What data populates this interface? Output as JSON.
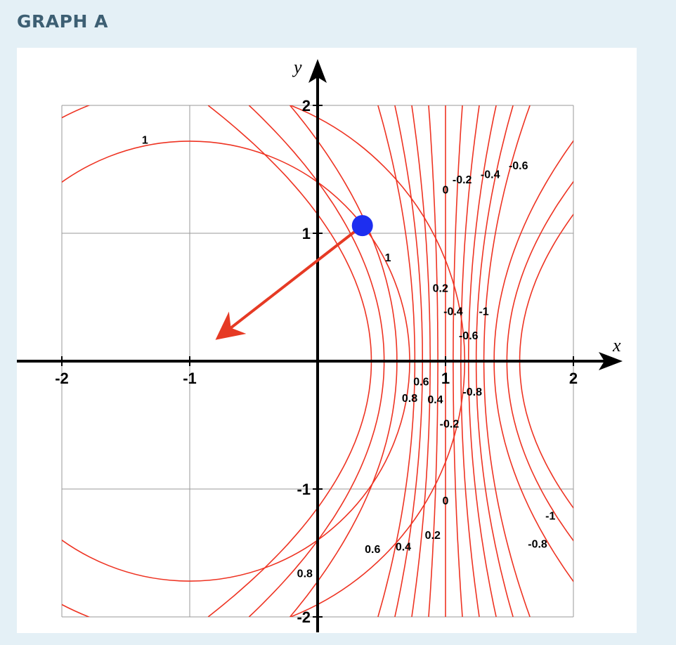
{
  "heading": "GRAPH A",
  "chart_data": {
    "type": "line",
    "title": "",
    "xlabel": "x",
    "ylabel": "y",
    "xlim": [
      -2,
      2
    ],
    "ylim": [
      -2,
      2
    ],
    "grid": true,
    "x_ticks": [
      "-2",
      "-1",
      "1",
      "2"
    ],
    "y_ticks": [
      "2",
      "1",
      "-1",
      "-2"
    ],
    "colors": {
      "contour": "#ee3322",
      "arrow": "#e63a24",
      "point": "#1d2ef0",
      "grid": "#9a9a9a"
    },
    "contour_levels": [
      1,
      0.8,
      0.6,
      0.4,
      0.2,
      0,
      -0.2,
      -0.4,
      -0.6,
      -0.8,
      -1
    ],
    "point": {
      "x": 0.35,
      "y": 1.06
    },
    "arrow": {
      "from": {
        "x": 0.35,
        "y": 1.06
      },
      "to": {
        "x": -0.73,
        "y": 0.22
      }
    },
    "contour_labels": [
      {
        "text": "1",
        "x": -1.35,
        "y": 1.7
      },
      {
        "text": "1",
        "x": 0.55,
        "y": 0.78
      },
      {
        "text": "0",
        "x": 1.0,
        "y": 1.31
      },
      {
        "text": "-0.2",
        "x": 1.13,
        "y": 1.39
      },
      {
        "text": "-0.4",
        "x": 1.35,
        "y": 1.43
      },
      {
        "text": "-0.6",
        "x": 1.57,
        "y": 1.5
      },
      {
        "text": "0.2",
        "x": 0.96,
        "y": 0.54
      },
      {
        "text": "-0.4",
        "x": 1.06,
        "y": 0.36
      },
      {
        "text": "-1",
        "x": 1.3,
        "y": 0.36
      },
      {
        "text": "-0.6",
        "x": 1.18,
        "y": 0.17
      },
      {
        "text": "0.6",
        "x": 0.81,
        "y": -0.19
      },
      {
        "text": "0.8",
        "x": 0.72,
        "y": -0.32
      },
      {
        "text": "0.4",
        "x": 0.92,
        "y": -0.33
      },
      {
        "text": "-0.8",
        "x": 1.21,
        "y": -0.27
      },
      {
        "text": "-0.2",
        "x": 1.03,
        "y": -0.52
      },
      {
        "text": "0",
        "x": 1.0,
        "y": -1.12
      },
      {
        "text": "-1",
        "x": 1.82,
        "y": -1.24
      },
      {
        "text": "0.2",
        "x": 0.9,
        "y": -1.39
      },
      {
        "text": "0.4",
        "x": 0.67,
        "y": -1.48
      },
      {
        "text": "0.6",
        "x": 0.43,
        "y": -1.5
      },
      {
        "text": "-0.8",
        "x": 1.72,
        "y": -1.46
      },
      {
        "text": "0.8",
        "x": -0.1,
        "y": -1.69
      }
    ]
  }
}
